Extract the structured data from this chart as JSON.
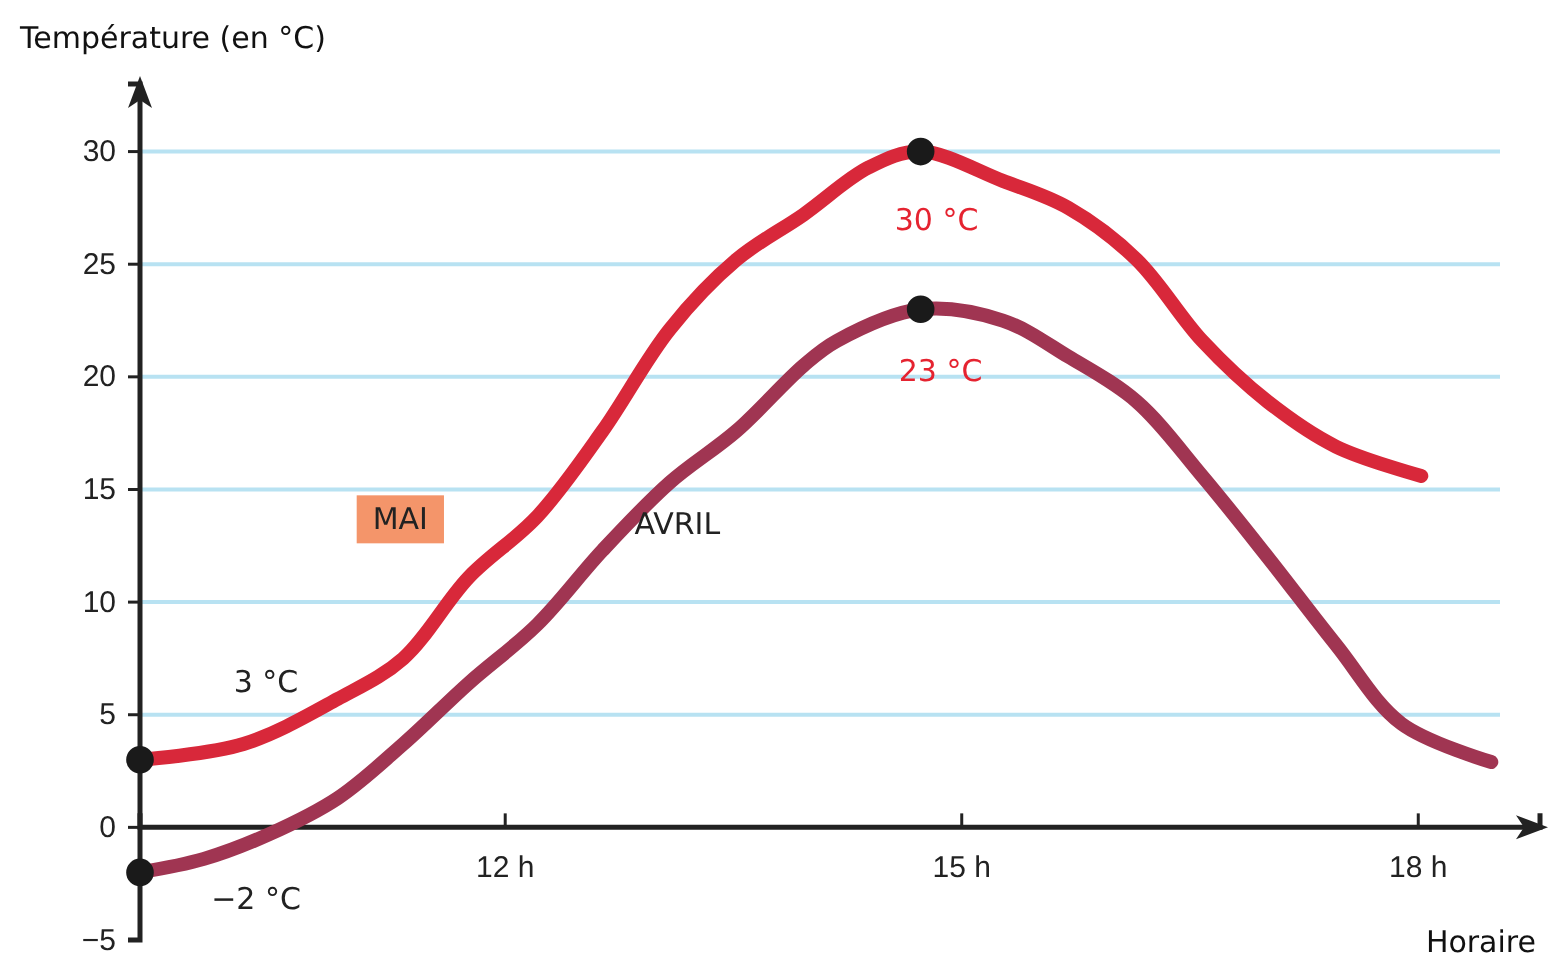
{
  "chart_data": {
    "type": "line",
    "xlabel": "Horaire",
    "ylabel": "Température (en °C)",
    "xlim": [
      9.6,
      18.8
    ],
    "ylim": [
      -5,
      33
    ],
    "xticks": [
      {
        "value": 12,
        "label": "12 h"
      },
      {
        "value": 15,
        "label": "15 h"
      },
      {
        "value": 18,
        "label": "18 h"
      }
    ],
    "yticks": [
      -5,
      0,
      5,
      10,
      15,
      20,
      25,
      30
    ],
    "grid": "y",
    "line_style": "solid",
    "series": [
      {
        "name": "MAI",
        "color": "#d8283a",
        "x": [
          9.6,
          10.28,
          10.9,
          11.33,
          11.76,
          12.21,
          12.64,
          13.08,
          13.52,
          13.96,
          14.39,
          14.73,
          15.27,
          15.7,
          16.15,
          16.58,
          17.01,
          17.46,
          18.02
        ],
        "values": [
          3,
          3.7,
          5.7,
          7.5,
          11.1,
          13.8,
          17.6,
          22.1,
          25.2,
          27.2,
          29.3,
          30,
          28.7,
          27.5,
          25.2,
          21.6,
          18.9,
          16.9,
          15.6
        ]
      },
      {
        "name": "AVRIL",
        "color": "#a03552",
        "x": [
          9.6,
          10.02,
          10.45,
          10.9,
          11.33,
          11.76,
          12.21,
          12.64,
          13.08,
          13.52,
          13.96,
          14.18,
          14.73,
          15.27,
          15.7,
          16.15,
          16.58,
          17.01,
          17.46,
          17.89,
          18.48
        ],
        "values": [
          -2,
          -1.4,
          -0.3,
          1.3,
          3.7,
          6.4,
          9,
          12.3,
          15.3,
          17.6,
          20.5,
          21.6,
          23,
          22.5,
          20.9,
          18.9,
          15.6,
          12,
          8.1,
          4.6,
          2.9
        ]
      },
      {
        "type": "scatter",
        "marker": "circle",
        "color": "#1a1a1a",
        "x": [
          9.6,
          9.6,
          14.73,
          14.73
        ],
        "values": [
          3,
          -2,
          30,
          23
        ]
      }
    ],
    "annotations": [
      "3 °C",
      "−2 °C",
      "30 °C",
      "23 °C"
    ]
  }
}
